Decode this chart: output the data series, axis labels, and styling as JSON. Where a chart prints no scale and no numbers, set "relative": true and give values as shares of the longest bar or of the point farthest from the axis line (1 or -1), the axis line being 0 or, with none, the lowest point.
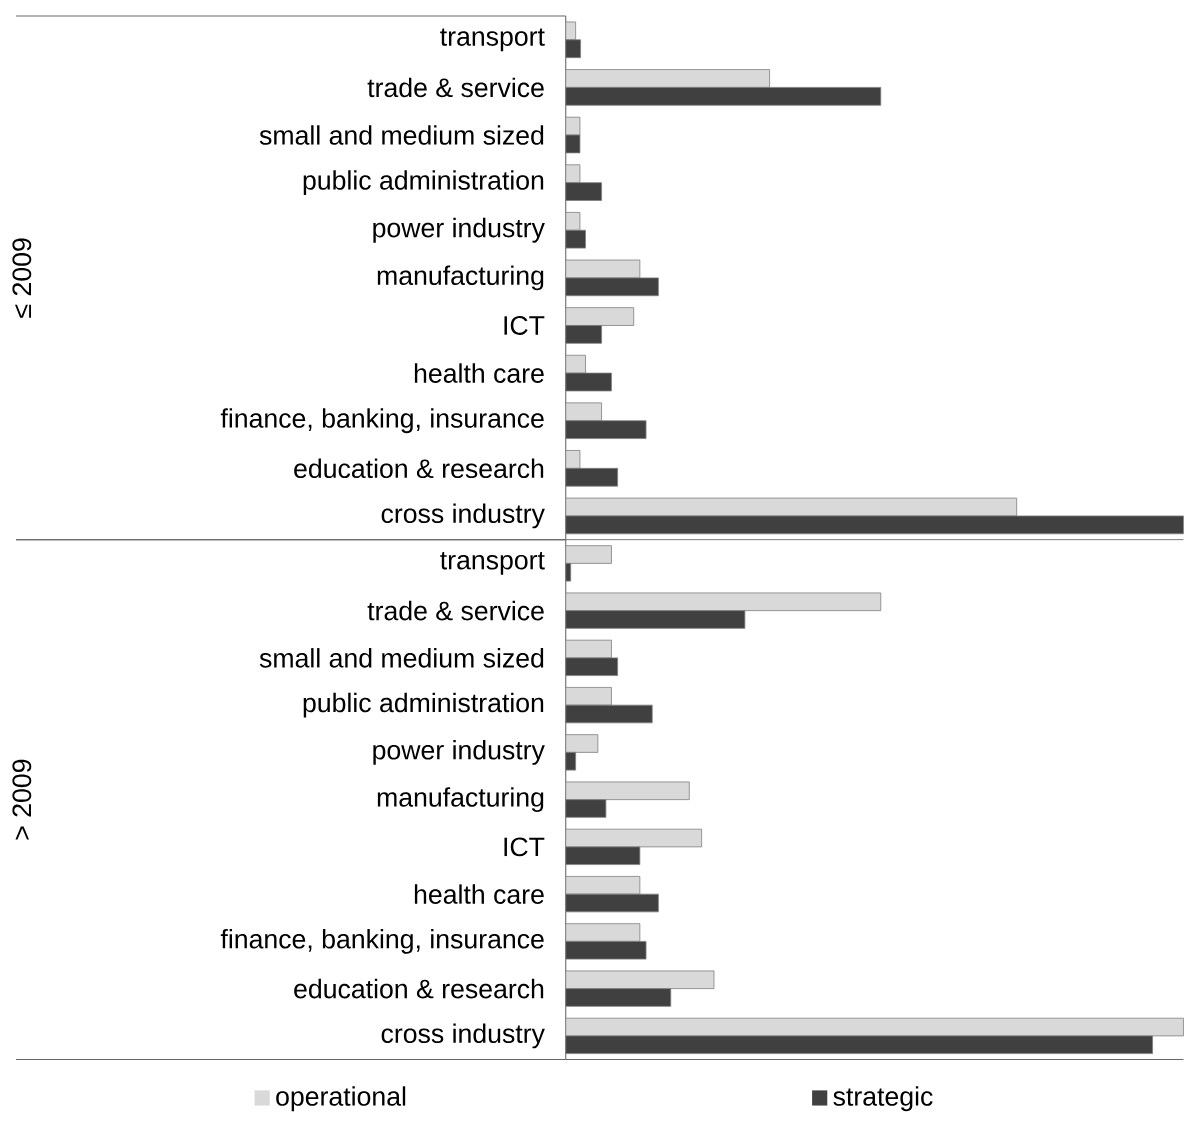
{
  "chart_data": [
    {
      "type": "bar",
      "orientation": "horizontal",
      "relative": true,
      "ylabel": "≤ 2009",
      "legend": false,
      "categories": [
        "transport",
        "trade & service",
        "small and medium sized",
        "public administration",
        "power industry",
        "manufacturing",
        "ICT",
        "health care",
        "finance, banking, insurance",
        "education & research",
        "cross industry"
      ],
      "series": [
        {
          "color": "#d9d9d9",
          "values": [
            0.016,
            0.33,
            0.023,
            0.023,
            0.023,
            0.12,
            0.11,
            0.032,
            0.058,
            0.023,
            0.73
          ]
        },
        {
          "color": "#404040",
          "values": [
            0.024,
            0.51,
            0.023,
            0.058,
            0.032,
            0.15,
            0.058,
            0.074,
            0.13,
            0.084,
            1
          ]
        }
      ]
    },
    {
      "type": "bar",
      "orientation": "horizontal",
      "relative": true,
      "ylabel": "> 2009",
      "legend": "bottom",
      "categories": [
        "transport",
        "trade & service",
        "small and medium sized",
        "public administration",
        "power industry",
        "manufacturing",
        "ICT",
        "health care",
        "finance, banking, insurance",
        "education & research",
        "cross industry"
      ],
      "series": [
        {
          "name": "operational",
          "color": "#d9d9d9",
          "values": [
            0.074,
            0.51,
            0.074,
            0.074,
            0.052,
            0.2,
            0.22,
            0.12,
            0.12,
            0.24,
            1
          ]
        },
        {
          "name": "strategic",
          "color": "#404040",
          "values": [
            0.008,
            0.29,
            0.084,
            0.14,
            0.016,
            0.065,
            0.12,
            0.15,
            0.13,
            0.17,
            0.95
          ]
        }
      ]
    }
  ]
}
